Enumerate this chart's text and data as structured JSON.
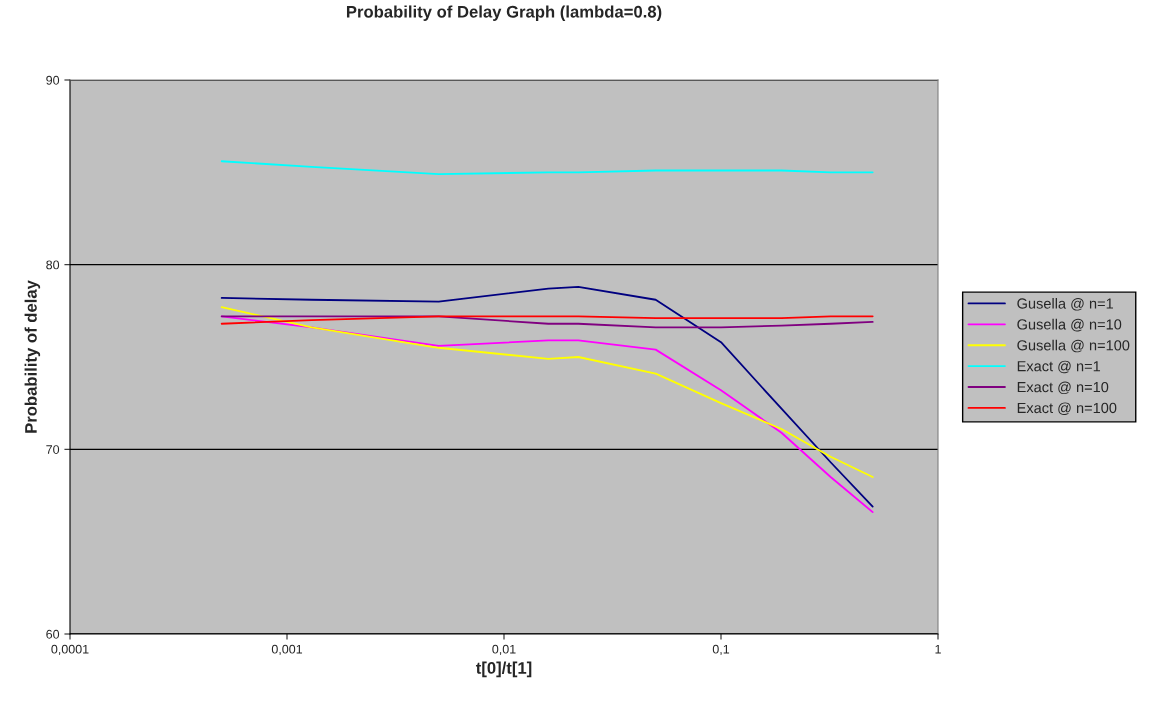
{
  "chart_data": {
    "type": "line",
    "title": "Probability of Delay Graph (lambda=0.8)",
    "xlabel": "t[0]/t[1]",
    "ylabel": "Probability of delay",
    "x": [
      0.0005,
      0.0013,
      0.005,
      0.016,
      0.022,
      0.05,
      0.1,
      0.19,
      0.32,
      0.5
    ],
    "series": [
      {
        "name": "Gusella @ n=1",
        "color": "#000080",
        "values": [
          78.2,
          78.1,
          78.0,
          78.7,
          78.8,
          78.1,
          75.8,
          72.2,
          69.3,
          66.9
        ]
      },
      {
        "name": "Gusella @ n=10",
        "color": "#ff00ff",
        "values": [
          77.2,
          76.6,
          75.6,
          75.9,
          75.9,
          75.4,
          73.2,
          70.9,
          68.5,
          66.6
        ]
      },
      {
        "name": "Gusella @ n=100",
        "color": "#ffff00",
        "values": [
          77.7,
          76.6,
          75.5,
          74.9,
          75.0,
          74.1,
          72.5,
          71.1,
          69.6,
          68.5
        ]
      },
      {
        "name": "Exact @ n=1",
        "color": "#00ffff",
        "values": [
          85.6,
          85.3,
          84.9,
          85.0,
          85.0,
          85.1,
          85.1,
          85.1,
          85.0,
          85.0
        ]
      },
      {
        "name": "Exact @ n=10",
        "color": "#800080",
        "values": [
          77.2,
          77.2,
          77.2,
          76.8,
          76.8,
          76.6,
          76.6,
          76.7,
          76.8,
          76.9
        ]
      },
      {
        "name": "Exact @ n=100",
        "color": "#ff0000",
        "values": [
          76.8,
          77.0,
          77.2,
          77.2,
          77.2,
          77.1,
          77.1,
          77.1,
          77.2,
          77.2
        ]
      }
    ],
    "log": "x",
    "xlim": [
      0.0001,
      1
    ],
    "xticks": [
      {
        "value": 0.0001,
        "label": "0,0001"
      },
      {
        "value": 0.001,
        "label": "0,001"
      },
      {
        "value": 0.01,
        "label": "0,01"
      },
      {
        "value": 0.1,
        "label": "0,1"
      },
      1
    ],
    "ylim": [
      60,
      90
    ],
    "yticks": [
      60,
      70,
      80,
      90
    ],
    "grid": "y",
    "legend": "right",
    "marker": "none",
    "line_style": "solid"
  }
}
